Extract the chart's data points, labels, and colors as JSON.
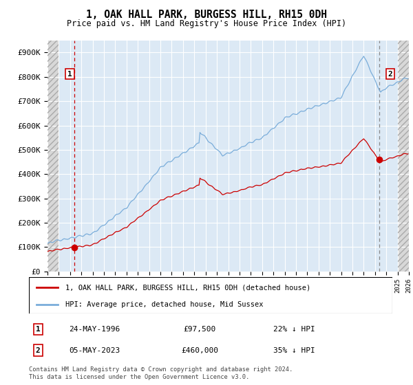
{
  "title1": "1, OAK HALL PARK, BURGESS HILL, RH15 0DH",
  "title2": "Price paid vs. HM Land Registry's House Price Index (HPI)",
  "ylim": [
    0,
    950000
  ],
  "yticks": [
    0,
    100000,
    200000,
    300000,
    400000,
    500000,
    600000,
    700000,
    800000,
    900000
  ],
  "ytick_labels": [
    "£0",
    "£100K",
    "£200K",
    "£300K",
    "£400K",
    "£500K",
    "£600K",
    "£700K",
    "£800K",
    "£900K"
  ],
  "hpi_color": "#7aadda",
  "price_color": "#cc0000",
  "bg_color": "#dce9f5",
  "sale1_date": 1996.38,
  "sale1_price": 97500,
  "sale2_date": 2023.35,
  "sale2_price": 460000,
  "legend_entry1": "1, OAK HALL PARK, BURGESS HILL, RH15 0DH (detached house)",
  "legend_entry2": "HPI: Average price, detached house, Mid Sussex",
  "table_row1": [
    "1",
    "24-MAY-1996",
    "£97,500",
    "22% ↓ HPI"
  ],
  "table_row2": [
    "2",
    "05-MAY-2023",
    "£460,000",
    "35% ↓ HPI"
  ],
  "footnote": "Contains HM Land Registry data © Crown copyright and database right 2024.\nThis data is licensed under the Open Government Licence v3.0.",
  "xmin": 1994,
  "xmax": 2026,
  "hatch_left_end": 1995,
  "hatch_right_start": 2025
}
